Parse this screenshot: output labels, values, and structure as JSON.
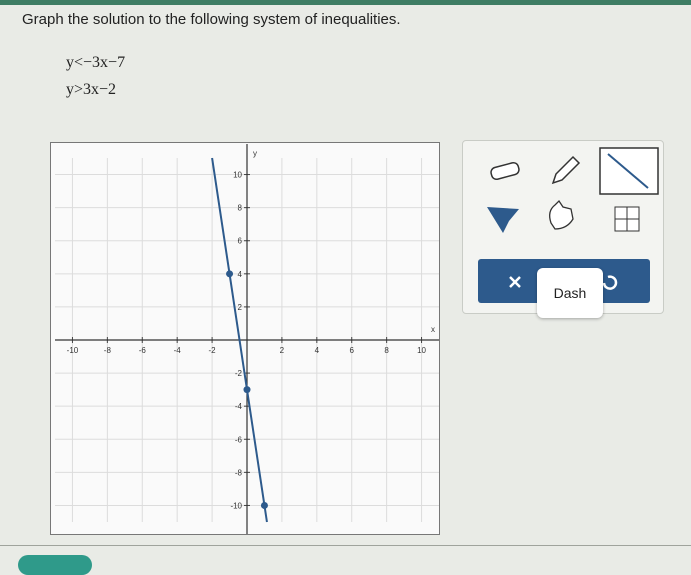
{
  "prompt": "Graph the solution to the following system of inequalities.",
  "inequalities": [
    "y<−3x−7",
    "y>3x−2"
  ],
  "graph": {
    "xlim": [
      -11,
      11
    ],
    "ylim": [
      -11,
      11
    ],
    "xticks": [
      -10,
      -8,
      -6,
      -4,
      -2,
      2,
      4,
      6,
      8,
      10
    ],
    "yticks": [
      -10,
      -8,
      -6,
      -4,
      -2,
      2,
      4,
      6,
      8,
      10
    ],
    "xlabel": "x",
    "ylabel": "y",
    "points": [
      {
        "x": -1,
        "y": 4
      },
      {
        "x": 0,
        "y": -3
      },
      {
        "x": 1,
        "y": -10
      }
    ]
  },
  "tools": {
    "line_style": "Dash"
  }
}
